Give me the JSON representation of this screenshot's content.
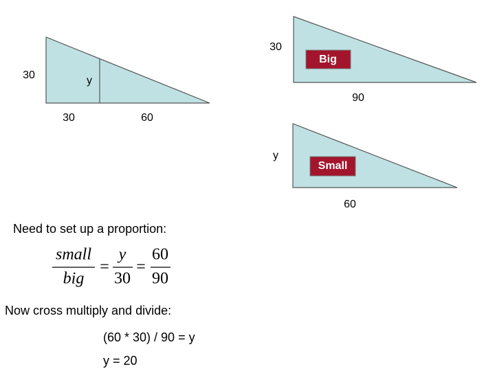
{
  "left_triangle": {
    "side_label": "30",
    "inner_label": "y",
    "base_left": "30",
    "base_right": "60"
  },
  "big_triangle": {
    "side_label": "30",
    "name": "Big",
    "base_label": "90"
  },
  "small_triangle": {
    "side_label": "y",
    "name": "Small",
    "base_label": "60"
  },
  "proportion_intro": "Need to set up a proportion:",
  "equation": {
    "fractions": [
      {
        "numerator": "small",
        "denominator": "big"
      },
      {
        "numerator": "y",
        "denominator": "30"
      },
      {
        "numerator": "60",
        "denominator": "90"
      }
    ],
    "equals": [
      "=",
      "="
    ]
  },
  "cross_intro": "Now cross multiply and divide:",
  "steps": [
    "(60 * 30) / 90 = y",
    "y = 20"
  ]
}
